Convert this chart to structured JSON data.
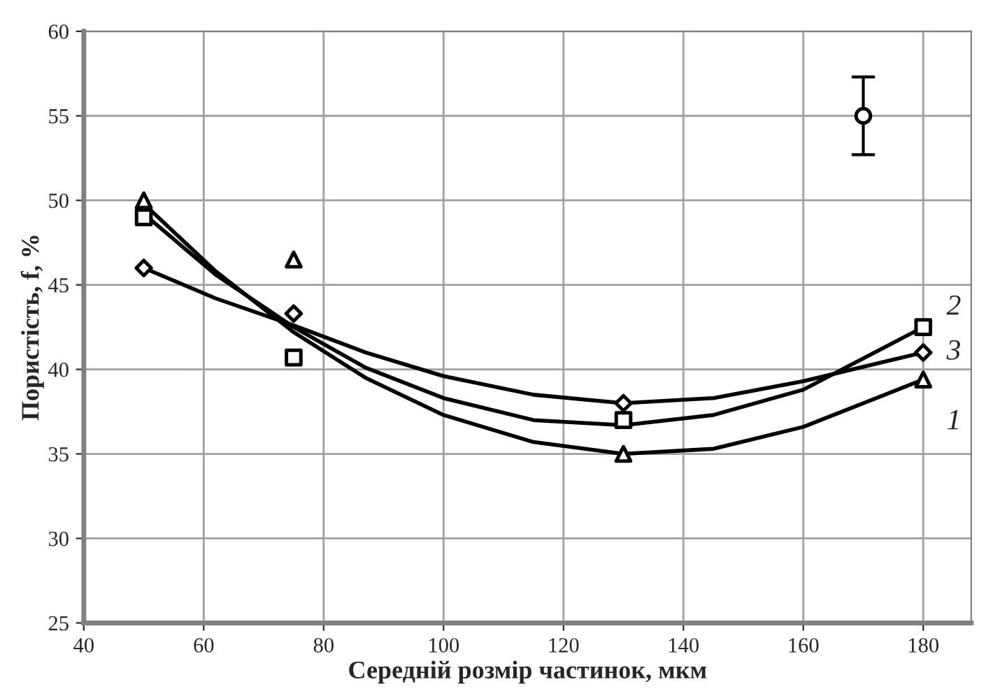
{
  "chart_data": {
    "type": "scatter",
    "xlabel": "Середній розмір частинок, мкм",
    "ylabel": "Пористість, f, %",
    "xlim": [
      40,
      188
    ],
    "xticks": [
      40,
      60,
      80,
      100,
      120,
      140,
      160,
      180
    ],
    "ylim": [
      25,
      60
    ],
    "yticks": [
      25,
      30,
      35,
      40,
      45,
      50,
      55,
      60
    ],
    "grid": true,
    "series": [
      {
        "marker": "triangle",
        "color": "#000000",
        "x": [
          50,
          75,
          130,
          180
        ],
        "values": [
          50,
          46.5,
          35,
          39.4
        ]
      },
      {
        "marker": "square",
        "color": "#000000",
        "x": [
          50,
          75,
          130,
          180
        ],
        "values": [
          49,
          40.7,
          37,
          42.5
        ]
      },
      {
        "marker": "diamond",
        "color": "#000000",
        "x": [
          50,
          75,
          130,
          180
        ],
        "values": [
          46,
          43.3,
          38,
          41
        ]
      },
      {
        "type": "line",
        "name": "1",
        "marker": "none",
        "color": "#000000",
        "x": [
          50,
          62,
          75,
          87,
          100,
          115,
          130,
          145,
          160,
          180
        ],
        "values": [
          49.8,
          45.8,
          42.2,
          39.5,
          37.3,
          35.7,
          35.0,
          35.3,
          36.6,
          39.4
        ]
      },
      {
        "type": "line",
        "name": "2",
        "marker": "none",
        "color": "#000000",
        "x": [
          50,
          62,
          75,
          87,
          100,
          115,
          130,
          145,
          160,
          180
        ],
        "values": [
          49.2,
          45.6,
          42.5,
          40.1,
          38.3,
          37.0,
          36.7,
          37.3,
          38.8,
          42.5
        ]
      },
      {
        "type": "line",
        "name": "3",
        "marker": "none",
        "color": "#000000",
        "x": [
          50,
          62,
          75,
          87,
          100,
          115,
          130,
          145,
          160,
          180
        ],
        "values": [
          46,
          44.2,
          42.6,
          41.0,
          39.6,
          38.5,
          38.0,
          38.3,
          39.3,
          41
        ]
      },
      {
        "marker": "circle",
        "color": "#000000",
        "x": [
          170
        ],
        "values": [
          55
        ],
        "errors": [
          2.3
        ]
      }
    ]
  }
}
